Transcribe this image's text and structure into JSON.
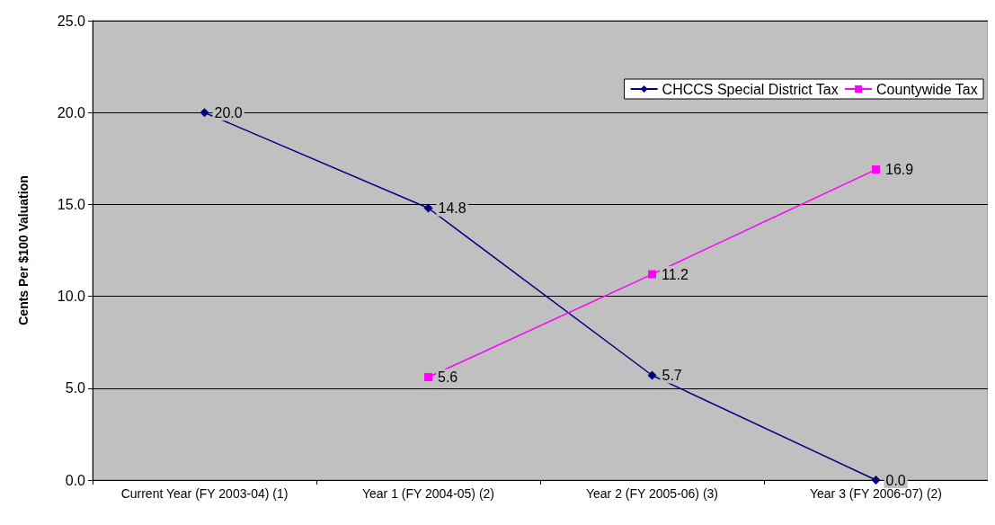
{
  "chart_data": {
    "type": "line",
    "ylabel": "Cents Per $100 Valuation",
    "categories": [
      "Current Year (FY 2003-04) (1)",
      "Year 1 (FY 2004-05) (2)",
      "Year 2 (FY 2005-06) (3)",
      "Year 3 (FY 2006-07) (2)"
    ],
    "series": [
      {
        "name": "CHCCS Special District Tax",
        "color": "#000080",
        "marker": "diamond",
        "values": [
          20.0,
          14.8,
          5.7,
          0.0
        ],
        "value_labels": [
          "20.0",
          "14.8",
          "5.7",
          "0.0"
        ]
      },
      {
        "name": "Countywide Tax",
        "color": "#ff00ff",
        "marker": "square",
        "values": [
          null,
          5.6,
          11.2,
          16.9
        ],
        "value_labels": [
          null,
          "5.6",
          "11.2",
          "16.9"
        ]
      }
    ],
    "ylim": [
      0,
      25
    ],
    "yticks": [
      {
        "value": 0,
        "label": "0.0"
      },
      {
        "value": 5,
        "label": "5.0"
      },
      {
        "value": 10,
        "label": "10.0"
      },
      {
        "value": 15,
        "label": "15.0"
      },
      {
        "value": 20,
        "label": "20.0"
      },
      {
        "value": 25,
        "label": "25.0"
      }
    ],
    "grid": "y",
    "legend": "top right"
  }
}
